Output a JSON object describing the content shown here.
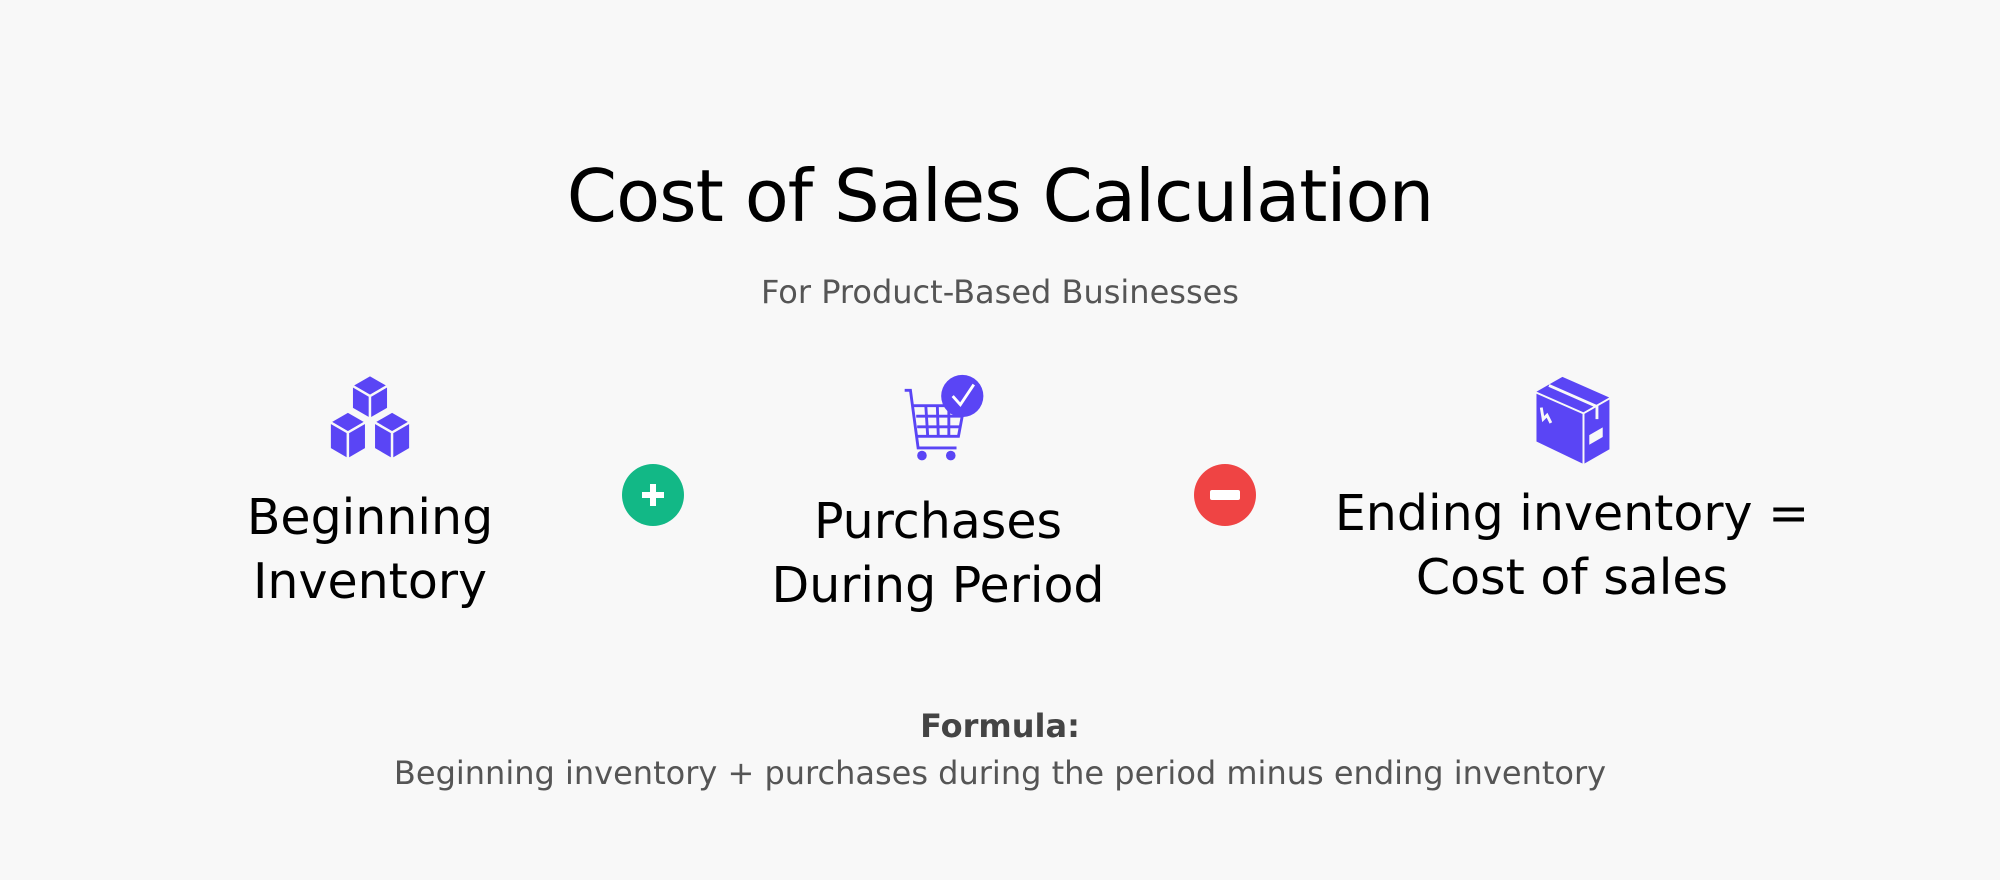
{
  "title": "Cost of Sales Calculation",
  "subtitle": "For Product-Based Businesses",
  "items": [
    {
      "icon": "stacked-boxes-icon",
      "line1": "Beginning",
      "line2": "Inventory"
    },
    {
      "icon": "shopping-cart-check-icon",
      "line1": "Purchases",
      "line2": "During Period"
    },
    {
      "icon": "package-box-icon",
      "line1": "Ending inventory =",
      "line2": "Cost of sales"
    }
  ],
  "operators": [
    {
      "icon": "plus-circle-icon",
      "color": "#12b886"
    },
    {
      "icon": "minus-circle-icon",
      "color": "#ef4444"
    }
  ],
  "icon_color": "#5a45f5",
  "formula": {
    "heading": "Formula:",
    "text": "Beginning inventory + purchases during the period minus ending inventory"
  }
}
